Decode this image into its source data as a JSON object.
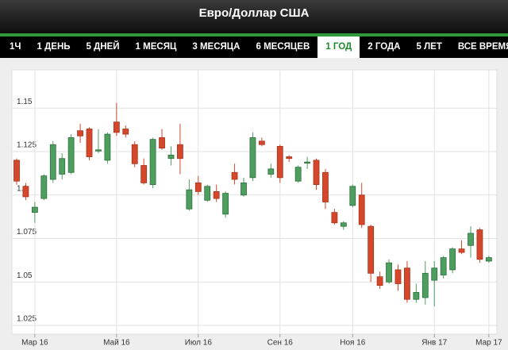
{
  "header": {
    "title": "Евро/Доллар США"
  },
  "tabs": [
    {
      "label": "1Ч",
      "active": false
    },
    {
      "label": "1 ДЕНЬ",
      "active": false
    },
    {
      "label": "5 ДНЕЙ",
      "active": false
    },
    {
      "label": "1 МЕСЯЦ",
      "active": false
    },
    {
      "label": "3 МЕСЯЦА",
      "active": false
    },
    {
      "label": "6 МЕСЯЦЕВ",
      "active": false
    },
    {
      "label": "1 ГОД",
      "active": true
    },
    {
      "label": "2 ГОДА",
      "active": false
    },
    {
      "label": "5 ЛЕТ",
      "active": false
    },
    {
      "label": "ВСЕ ВРЕМЯ",
      "active": false
    }
  ],
  "chart_data": {
    "type": "candlestick",
    "up_color": "#4e9e60",
    "down_color": "#d5472b",
    "categories": [
      null,
      null,
      "Мар 16",
      null,
      null,
      null,
      null,
      null,
      null,
      null,
      null,
      "Май 16",
      null,
      null,
      null,
      null,
      null,
      null,
      null,
      null,
      "Июл 16",
      null,
      null,
      null,
      null,
      null,
      null,
      null,
      null,
      "Сен 16",
      null,
      null,
      null,
      null,
      null,
      null,
      null,
      "Ноя 16",
      null,
      null,
      null,
      null,
      null,
      null,
      null,
      null,
      "Янв 17",
      null,
      null,
      null,
      null,
      null,
      "Мар 17"
    ],
    "open": [
      1.12,
      1.105,
      1.09,
      1.098,
      1.109,
      1.112,
      1.113,
      1.137,
      1.138,
      1.126,
      1.12,
      1.142,
      1.138,
      1.129,
      1.117,
      1.106,
      1.133,
      1.121,
      1.129,
      1.092,
      1.107,
      1.097,
      1.102,
      1.089,
      1.113,
      1.1,
      1.11,
      1.131,
      1.112,
      1.128,
      1.122,
      1.108,
      1.119,
      1.12,
      1.113,
      1.09,
      1.082,
      1.094,
      1.1,
      1.082,
      1.053,
      1.05,
      1.057,
      1.058,
      1.04,
      1.041,
      1.051,
      1.054,
      1.057,
      1.069,
      1.071,
      1.08,
      1.062
    ],
    "high": [
      1.121,
      1.107,
      1.096,
      1.112,
      1.131,
      1.124,
      1.135,
      1.141,
      1.139,
      1.138,
      1.136,
      1.153,
      1.14,
      1.131,
      1.121,
      1.133,
      1.138,
      1.128,
      1.141,
      1.109,
      1.111,
      1.106,
      1.106,
      1.102,
      1.118,
      1.11,
      1.136,
      1.133,
      1.118,
      1.129,
      1.123,
      1.117,
      1.122,
      1.121,
      1.115,
      1.092,
      1.085,
      1.106,
      1.107,
      1.083,
      1.056,
      1.063,
      1.06,
      1.062,
      1.049,
      1.062,
      1.062,
      1.065,
      1.07,
      1.074,
      1.082,
      1.081,
      1.065
    ],
    "low": [
      1.106,
      1.097,
      1.084,
      1.097,
      1.107,
      1.109,
      1.112,
      1.13,
      1.12,
      1.124,
      1.118,
      1.134,
      1.133,
      1.116,
      1.106,
      1.104,
      1.126,
      1.117,
      1.112,
      1.091,
      1.1,
      1.096,
      1.096,
      1.087,
      1.106,
      1.099,
      1.108,
      1.128,
      1.11,
      1.107,
      1.119,
      1.107,
      1.115,
      1.103,
      1.092,
      1.083,
      1.08,
      1.093,
      1.081,
      1.05,
      1.046,
      1.049,
      1.045,
      1.038,
      1.038,
      1.037,
      1.036,
      1.052,
      1.055,
      1.066,
      1.064,
      1.061,
      1.061
    ],
    "close": [
      1.108,
      1.099,
      1.093,
      1.111,
      1.129,
      1.121,
      1.133,
      1.134,
      1.122,
      1.126,
      1.135,
      1.136,
      1.135,
      1.118,
      1.107,
      1.132,
      1.127,
      1.123,
      1.121,
      1.103,
      1.102,
      1.105,
      1.098,
      1.101,
      1.109,
      1.107,
      1.133,
      1.129,
      1.115,
      1.11,
      1.121,
      1.116,
      1.119,
      1.106,
      1.096,
      1.084,
      1.084,
      1.105,
      1.083,
      1.055,
      1.048,
      1.061,
      1.049,
      1.04,
      1.044,
      1.055,
      1.058,
      1.064,
      1.069,
      1.067,
      1.078,
      1.063,
      1.064
    ],
    "ylim": [
      1.02,
      1.172
    ],
    "yticks": [
      1.025,
      1.05,
      1.075,
      1.1,
      1.125,
      1.15
    ],
    "grid": true
  }
}
